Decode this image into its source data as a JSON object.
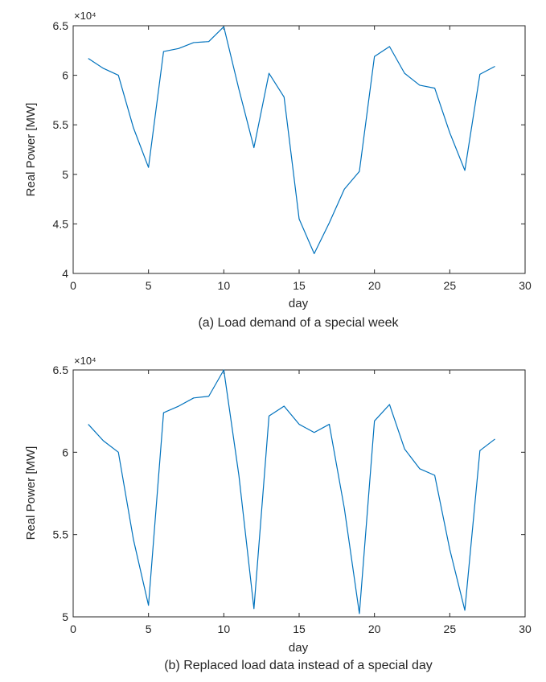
{
  "chart_data": [
    {
      "type": "line",
      "caption": "(a) Load demand of a special week",
      "xlabel": "day",
      "ylabel": "Real Power [MW]",
      "y_exponent_label": "×10⁴",
      "xlim": [
        0,
        30
      ],
      "ylim": [
        4,
        6.5
      ],
      "xticks": [
        0,
        5,
        10,
        15,
        20,
        25,
        30
      ],
      "yticks": [
        4,
        4.5,
        5,
        5.5,
        6,
        6.5
      ],
      "line_color": "#0072BD",
      "series": [
        {
          "x": [
            1,
            2,
            3,
            4,
            5,
            6,
            7,
            8,
            9,
            10,
            11,
            12,
            13,
            14,
            15,
            16,
            17,
            18,
            19,
            20,
            21,
            22,
            23,
            24,
            25,
            26,
            27,
            28
          ],
          "y": [
            6.17,
            6.07,
            6.0,
            5.47,
            5.07,
            6.24,
            6.27,
            6.33,
            6.34,
            6.49,
            5.86,
            5.27,
            6.02,
            5.78,
            4.55,
            4.2,
            4.51,
            4.85,
            5.03,
            6.19,
            6.29,
            6.02,
            5.9,
            5.87,
            5.42,
            5.04,
            6.01,
            6.09
          ]
        }
      ]
    },
    {
      "type": "line",
      "caption": "(b) Replaced load data instead of a special day",
      "xlabel": "day",
      "ylabel": "Real Power [MW]",
      "y_exponent_label": "×10⁴",
      "xlim": [
        0,
        30
      ],
      "ylim": [
        5,
        6.5
      ],
      "xticks": [
        0,
        5,
        10,
        15,
        20,
        25,
        30
      ],
      "yticks": [
        5,
        5.5,
        6,
        6.5
      ],
      "line_color": "#0072BD",
      "series": [
        {
          "x": [
            1,
            2,
            3,
            4,
            5,
            6,
            7,
            8,
            9,
            10,
            11,
            12,
            13,
            14,
            15,
            16,
            17,
            18,
            19,
            20,
            21,
            22,
            23,
            24,
            25,
            26,
            27,
            28
          ],
          "y": [
            6.17,
            6.07,
            6.0,
            5.47,
            5.07,
            6.24,
            6.28,
            6.33,
            6.34,
            6.5,
            5.86,
            5.05,
            6.22,
            6.28,
            6.17,
            6.12,
            6.17,
            5.66,
            5.02,
            6.19,
            6.29,
            6.02,
            5.9,
            5.86,
            5.41,
            5.04,
            6.01,
            6.08
          ]
        }
      ]
    }
  ]
}
